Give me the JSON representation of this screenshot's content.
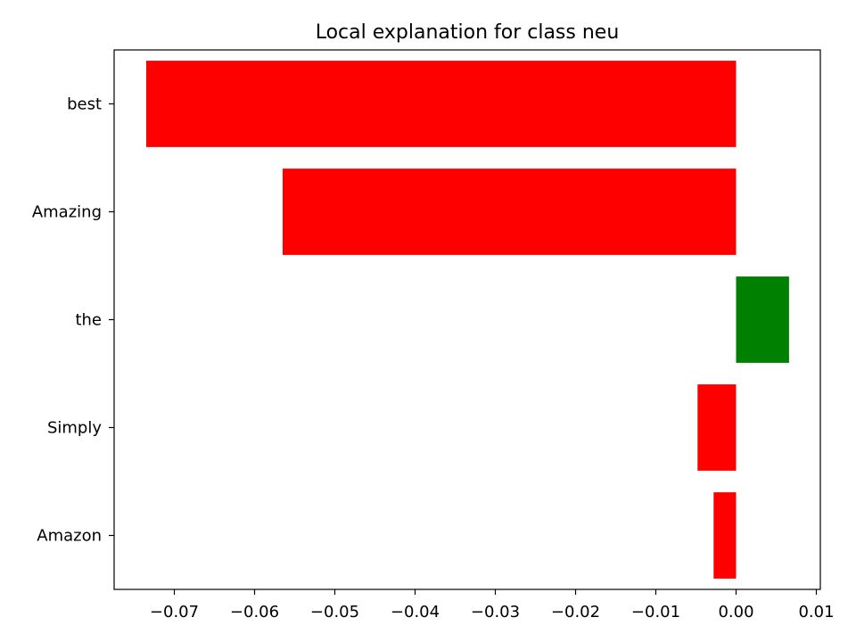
{
  "chart_data": {
    "type": "bar",
    "orientation": "horizontal",
    "title": "Local explanation for class neu",
    "xlabel": "",
    "ylabel": "",
    "categories": [
      "best",
      "Amazing",
      "the",
      "Simply",
      "Amazon"
    ],
    "values": [
      -0.0735,
      -0.0565,
      0.0066,
      -0.0048,
      -0.0028
    ],
    "bar_colors": [
      "#ff0000",
      "#ff0000",
      "#008000",
      "#ff0000",
      "#ff0000"
    ],
    "positive_color": "#008000",
    "negative_color": "#ff0000",
    "xlim": [
      -0.0775,
      0.0105
    ],
    "xticks": [
      -0.07,
      -0.06,
      -0.05,
      -0.04,
      -0.03,
      -0.02,
      -0.01,
      0.0,
      0.01
    ],
    "xtick_labels": [
      "−0.07",
      "−0.06",
      "−0.05",
      "−0.04",
      "−0.03",
      "−0.02",
      "−0.01",
      "0.00",
      "0.01"
    ],
    "grid": false,
    "legend": "none"
  }
}
